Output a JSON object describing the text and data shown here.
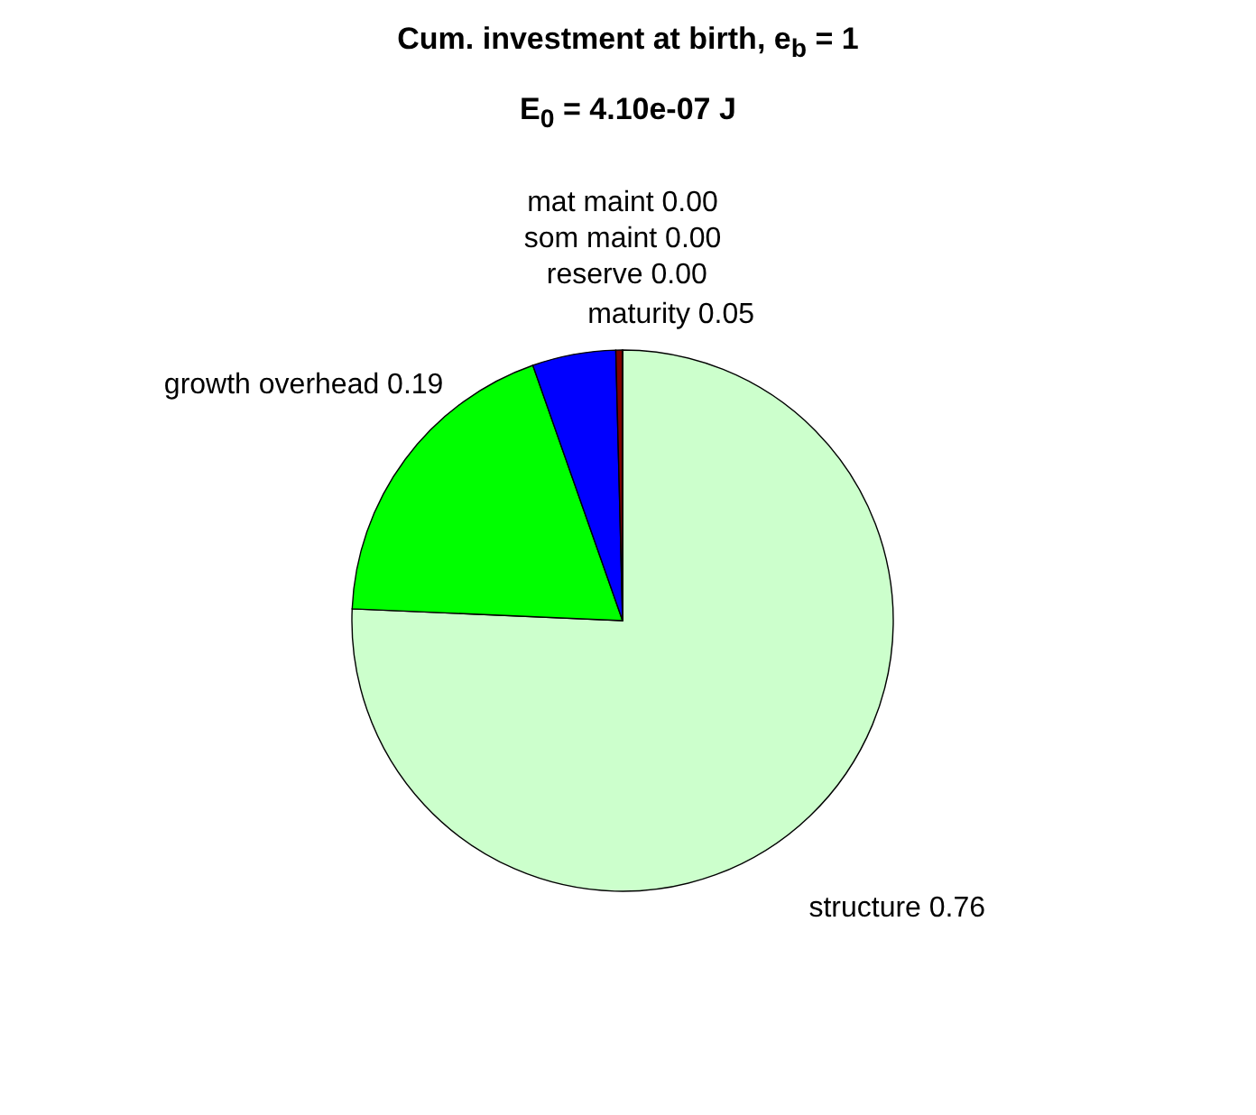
{
  "chart_data": {
    "type": "pie",
    "title": "Cum. investment at birth, e$_{b}$ = 1",
    "subtitle": "E$_{0}$ = 4.10e-07 J",
    "categories": [
      "structure",
      "growth overhead",
      "maturity",
      "reserve",
      "som maint",
      "mat maint"
    ],
    "values": [
      0.76,
      0.19,
      0.05,
      0.004,
      0,
      0
    ],
    "value_labels": [
      "0.76",
      "0.19",
      "0.05",
      "0.00",
      "0.00",
      "0.00"
    ],
    "colors": [
      "#ccffcc",
      "#00ff00",
      "#0000ff",
      "#800000",
      "#ffff00",
      "#ff00ff"
    ]
  }
}
